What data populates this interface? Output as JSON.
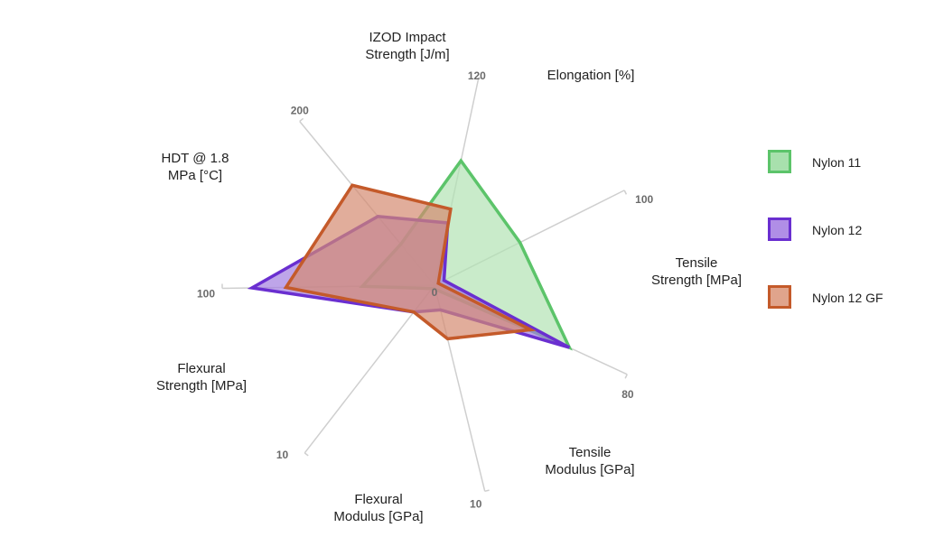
{
  "chart_data": {
    "type": "radar",
    "axes": [
      {
        "label": [
          "IZOD Impact",
          "Strength [J/m]"
        ],
        "max": 120,
        "max_label": "120"
      },
      {
        "label": [
          "Elongation [%]"
        ],
        "max": 100,
        "max_label": "100"
      },
      {
        "label": [
          "Tensile",
          "Strength [MPa]"
        ],
        "max": 80,
        "max_label": "80"
      },
      {
        "label": [
          "Tensile",
          "Modulus [GPa]"
        ],
        "max": 10,
        "max_label": "10"
      },
      {
        "label": [
          "Flexural",
          "Modulus [GPa]"
        ],
        "max": 10,
        "max_label": "10"
      },
      {
        "label": [
          "Flexural",
          "Strength [MPa]"
        ],
        "max": 100,
        "max_label": "100"
      },
      {
        "label": [
          "HDT @ 1.8",
          "MPa [°C]"
        ],
        "max": 200,
        "max_label": "200"
      }
    ],
    "min_label": "0",
    "series": [
      {
        "name": "Nylon 11",
        "color": "#5cc46a",
        "fill": "#b2e3b4",
        "values": [
          72,
          45,
          56,
          0.2,
          0.2,
          34,
          50
        ]
      },
      {
        "name": "Nylon 12",
        "color": "#6a2fd0",
        "fill": "#a37fe0",
        "values": [
          36,
          5,
          56,
          1.2,
          1.6,
          86,
          84
        ]
      },
      {
        "name": "Nylon 12 GF",
        "color": "#c45a2a",
        "fill": "#d48a70",
        "values": [
          44,
          2,
          40,
          2.6,
          1.6,
          70,
          122
        ]
      }
    ]
  }
}
